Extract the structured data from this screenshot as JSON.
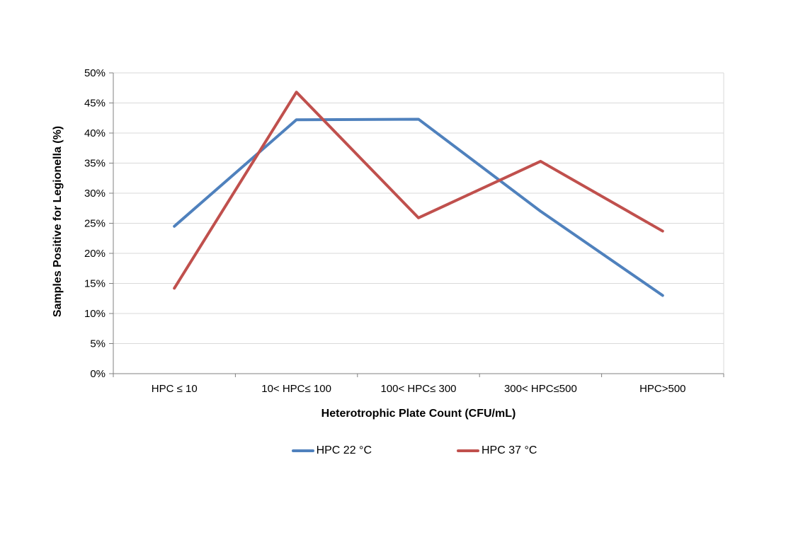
{
  "chart_data": {
    "type": "line",
    "title": "",
    "categories": [
      "HPC ≤ 10",
      "10< HPC≤ 100",
      "100< HPC≤ 300",
      "300< HPC≤500",
      "HPC>500"
    ],
    "series": [
      {
        "name": "HPC 22 °C",
        "color": "#4F81BD",
        "values": [
          24.5,
          42.2,
          42.3,
          27.0,
          13.0
        ]
      },
      {
        "name": "HPC 37 °C",
        "color": "#C0504D",
        "values": [
          14.2,
          46.8,
          25.9,
          35.3,
          23.7
        ]
      }
    ],
    "xlabel": "Heterotrophic  Plate Count (CFU/mL)",
    "ylabel": "Samples Positive for Legionella (%)",
    "ylim": [
      0,
      50
    ],
    "ytick_step": 5,
    "ytick_suffix": "%",
    "grid": "horizontal",
    "legend_position": "bottom",
    "colors": {
      "gridline": "#D9D9D9",
      "axis": "#808080",
      "text": "#000000"
    }
  }
}
